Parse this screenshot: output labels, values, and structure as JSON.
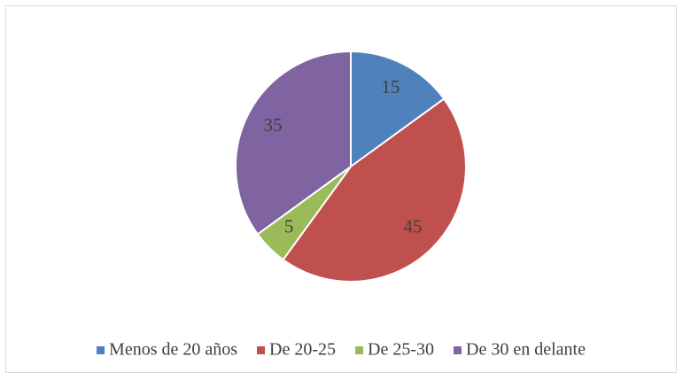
{
  "chart_data": {
    "type": "pie",
    "categories": [
      "Menos de 20 años",
      "De 20-25",
      "De 25-30",
      "De 30 en delante"
    ],
    "values": [
      15,
      45,
      5,
      35
    ],
    "colors": [
      "#4f81bd",
      "#c0504d",
      "#9bbb59",
      "#8064a2"
    ],
    "legend": "bottom"
  }
}
